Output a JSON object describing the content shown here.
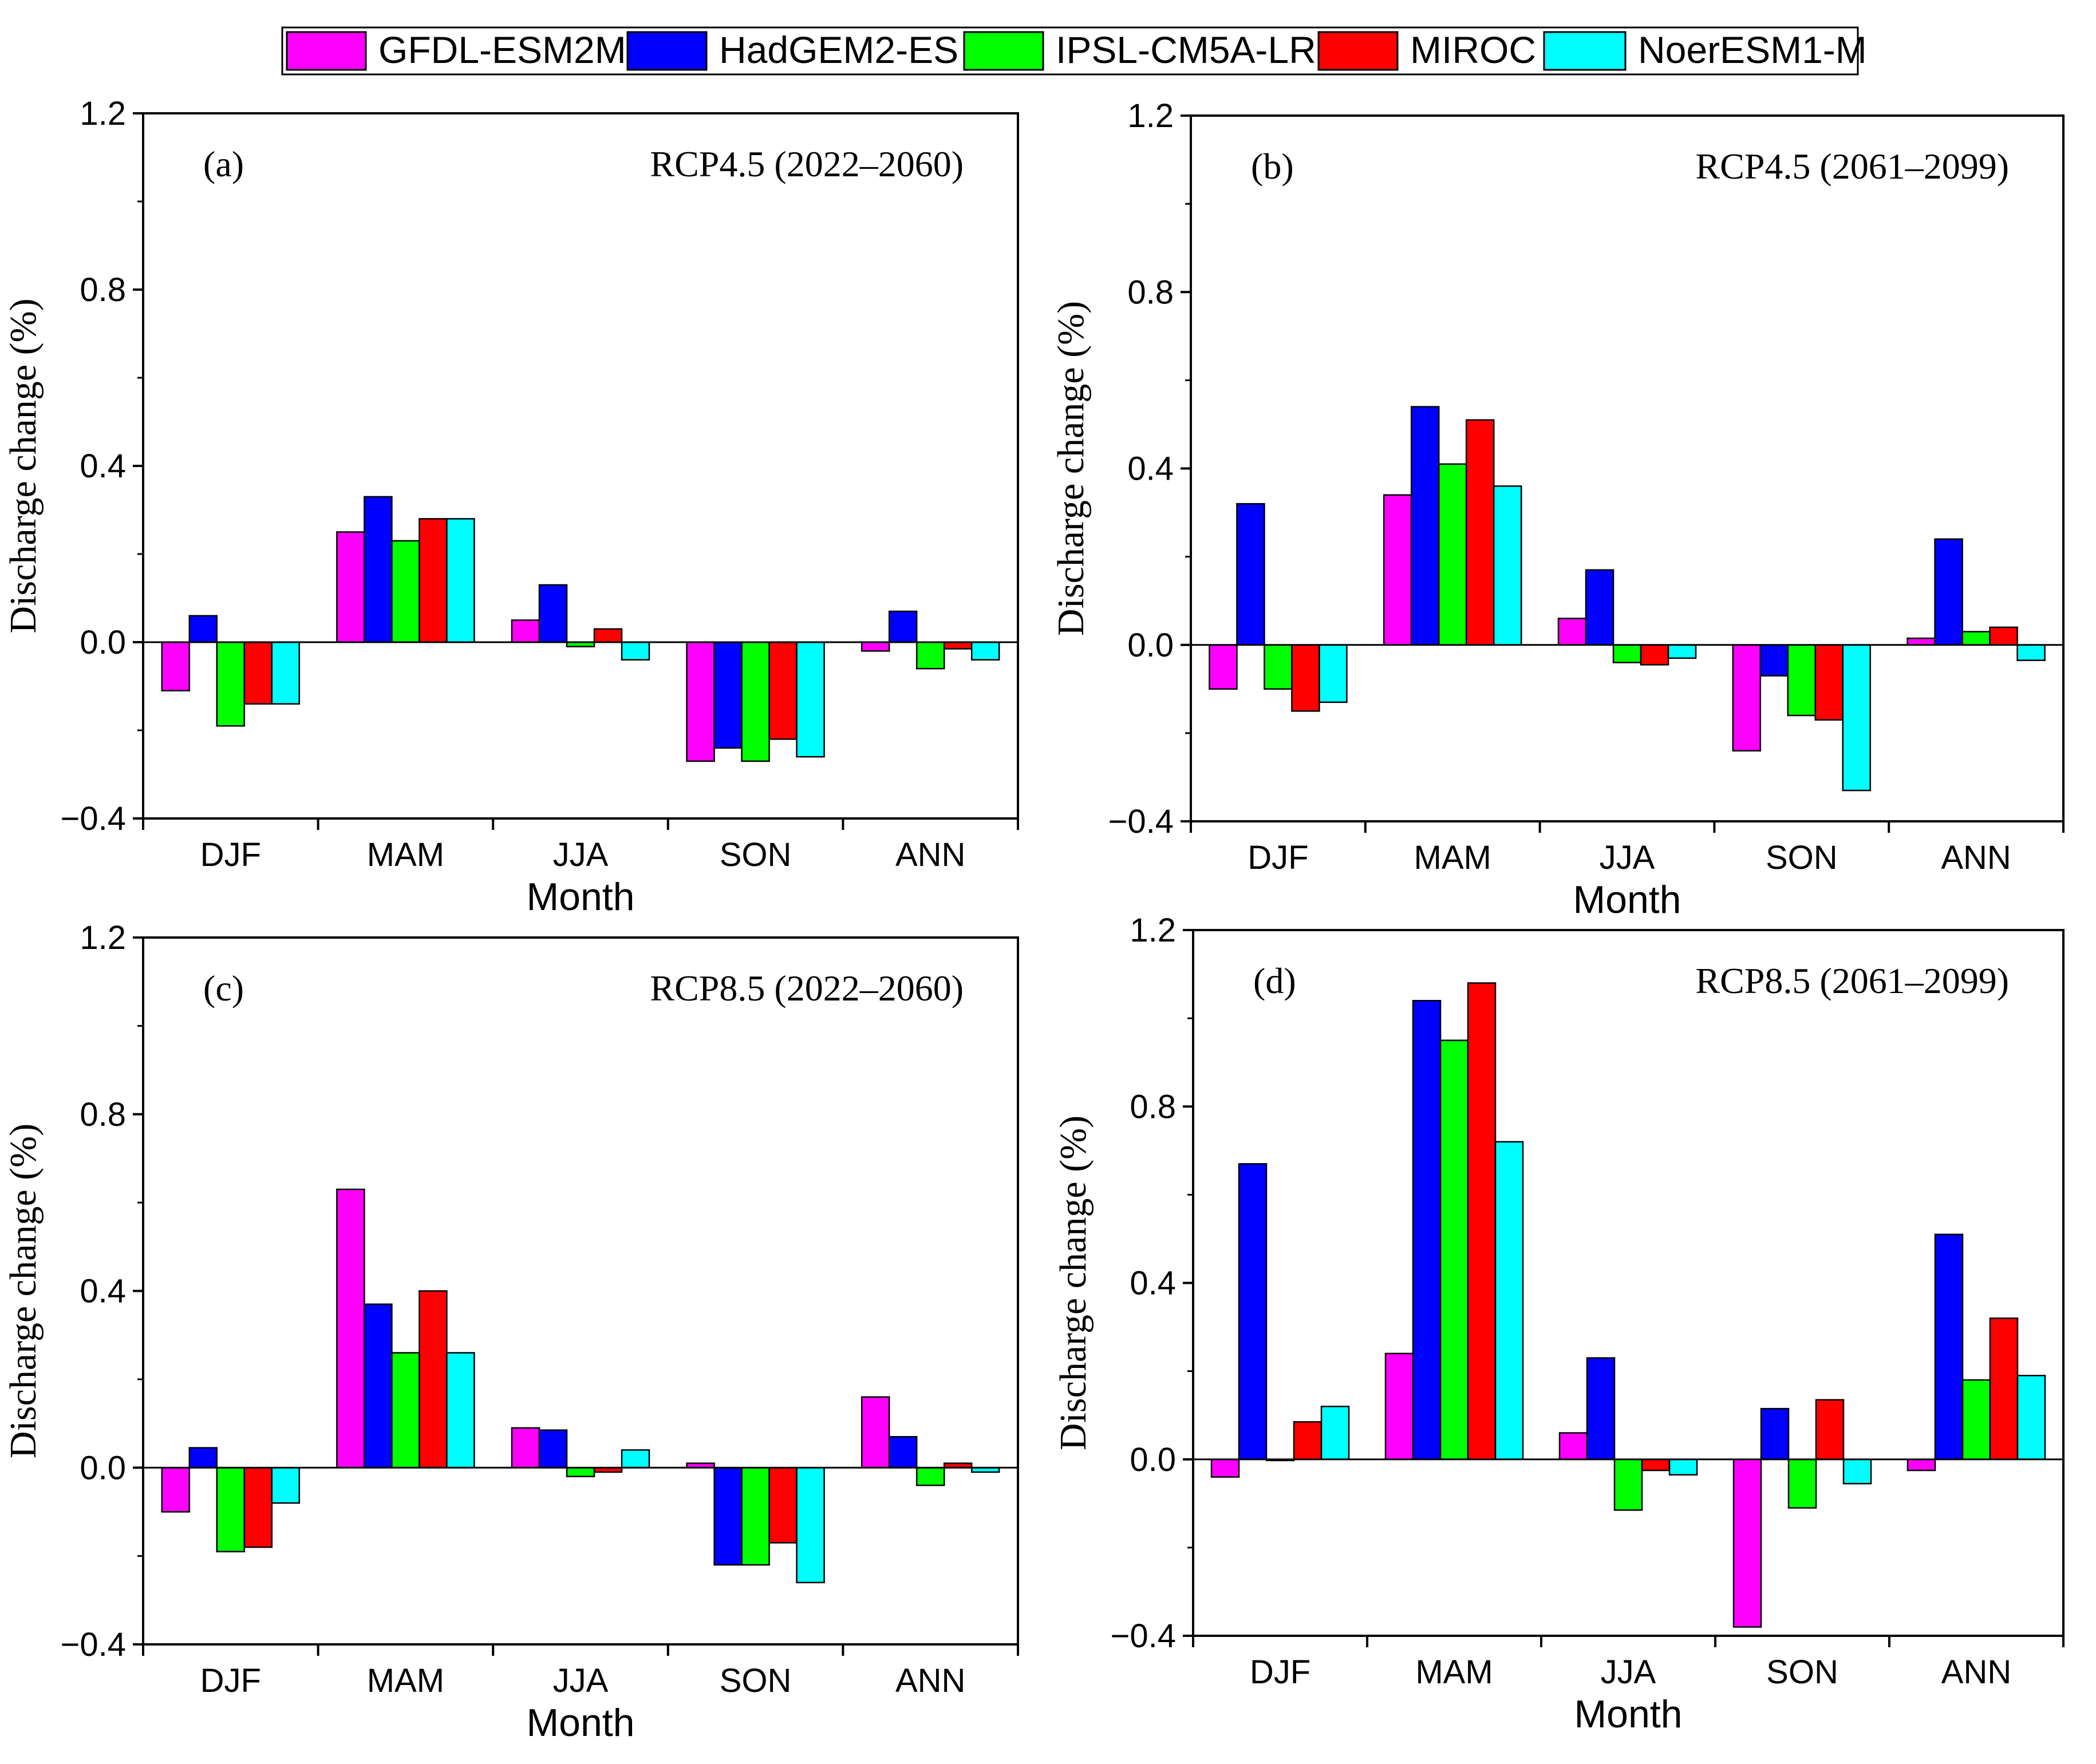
{
  "legend": {
    "items": [
      {
        "name": "GFDL-ESM2M",
        "color": "#ff00ff"
      },
      {
        "name": "HadGEM2-ES",
        "color": "#0000ff"
      },
      {
        "name": "IPSL-CM5A-LR",
        "color": "#00ff00"
      },
      {
        "name": "MIROC",
        "color": "#ff0000"
      },
      {
        "name": "NoerESM1-M",
        "color": "#00ffff"
      }
    ]
  },
  "chart_data": [
    {
      "type": "bar",
      "panel": "(a)",
      "title": "RCP4.5 (2022–2060)",
      "xlabel": "Month",
      "ylabel": "Discharge change (%)",
      "ylim": [
        -0.4,
        1.2
      ],
      "yticks": [
        "−0.4",
        "0.0",
        "0.4",
        "0.8",
        "1.2"
      ],
      "categories": [
        "DJF",
        "MAM",
        "JJA",
        "SON",
        "ANN"
      ],
      "series": [
        {
          "name": "GFDL-ESM2M",
          "values": [
            -0.11,
            0.25,
            0.05,
            -0.27,
            -0.02
          ]
        },
        {
          "name": "HadGEM2-ES",
          "values": [
            0.06,
            0.33,
            0.13,
            -0.24,
            0.07
          ]
        },
        {
          "name": "IPSL-CM5A-LR",
          "values": [
            -0.19,
            0.23,
            -0.01,
            -0.27,
            -0.06
          ]
        },
        {
          "name": "MIROC",
          "values": [
            -0.14,
            0.28,
            0.03,
            -0.22,
            -0.015
          ]
        },
        {
          "name": "NoerESM1-M",
          "values": [
            -0.14,
            0.28,
            -0.04,
            -0.26,
            -0.04
          ]
        }
      ]
    },
    {
      "type": "bar",
      "panel": "(b)",
      "title": "RCP4.5 (2061–2099)",
      "xlabel": "Month",
      "ylabel": "Discharge change (%)",
      "ylim": [
        -0.4,
        1.2
      ],
      "yticks": [
        "−0.4",
        "0.0",
        "0.4",
        "0.8",
        "1.2"
      ],
      "categories": [
        "DJF",
        "MAM",
        "JJA",
        "SON",
        "ANN"
      ],
      "series": [
        {
          "name": "GFDL-ESM2M",
          "values": [
            -0.1,
            0.34,
            0.06,
            -0.24,
            0.015
          ]
        },
        {
          "name": "HadGEM2-ES",
          "values": [
            0.32,
            0.54,
            0.17,
            -0.07,
            0.24
          ]
        },
        {
          "name": "IPSL-CM5A-LR",
          "values": [
            -0.1,
            0.41,
            -0.04,
            -0.16,
            0.03
          ]
        },
        {
          "name": "MIROC",
          "values": [
            -0.15,
            0.51,
            -0.045,
            -0.17,
            0.04
          ]
        },
        {
          "name": "NoerESM1-M",
          "values": [
            -0.13,
            0.36,
            -0.03,
            -0.33,
            -0.035
          ]
        }
      ]
    },
    {
      "type": "bar",
      "panel": "(c)",
      "title": "RCP8.5 (2022–2060)",
      "xlabel": "Month",
      "ylabel": "Discharge change (%)",
      "ylim": [
        -0.4,
        1.2
      ],
      "yticks": [
        "−0.4",
        "0.0",
        "0.4",
        "0.8",
        "1.2"
      ],
      "categories": [
        "DJF",
        "MAM",
        "JJA",
        "SON",
        "ANN"
      ],
      "series": [
        {
          "name": "GFDL-ESM2M",
          "values": [
            -0.1,
            0.63,
            0.09,
            0.01,
            0.16
          ]
        },
        {
          "name": "HadGEM2-ES",
          "values": [
            0.045,
            0.37,
            0.085,
            -0.22,
            0.07
          ]
        },
        {
          "name": "IPSL-CM5A-LR",
          "values": [
            -0.19,
            0.26,
            -0.02,
            -0.22,
            -0.04
          ]
        },
        {
          "name": "MIROC",
          "values": [
            -0.18,
            0.4,
            -0.01,
            -0.17,
            0.01
          ]
        },
        {
          "name": "NoerESM1-M",
          "values": [
            -0.08,
            0.26,
            0.04,
            -0.26,
            -0.01
          ]
        }
      ]
    },
    {
      "type": "bar",
      "panel": "(d)",
      "title": "RCP8.5 (2061–2099)",
      "xlabel": "Month",
      "ylabel": "Discharge change (%)",
      "ylim": [
        -0.4,
        1.2
      ],
      "yticks": [
        "−0.4",
        "0.0",
        "0.4",
        "0.8",
        "1.2"
      ],
      "categories": [
        "DJF",
        "MAM",
        "JJA",
        "SON",
        "ANN"
      ],
      "series": [
        {
          "name": "GFDL-ESM2M",
          "values": [
            -0.04,
            0.24,
            0.06,
            -0.38,
            -0.025
          ]
        },
        {
          "name": "HadGEM2-ES",
          "values": [
            0.67,
            1.04,
            0.23,
            0.115,
            0.51
          ]
        },
        {
          "name": "IPSL-CM5A-LR",
          "values": [
            0.0,
            0.95,
            -0.115,
            -0.11,
            0.18
          ]
        },
        {
          "name": "MIROC",
          "values": [
            0.085,
            1.08,
            -0.025,
            0.135,
            0.32
          ]
        },
        {
          "name": "NoerESM1-M",
          "values": [
            0.12,
            0.72,
            -0.035,
            -0.055,
            0.19
          ]
        }
      ]
    }
  ]
}
